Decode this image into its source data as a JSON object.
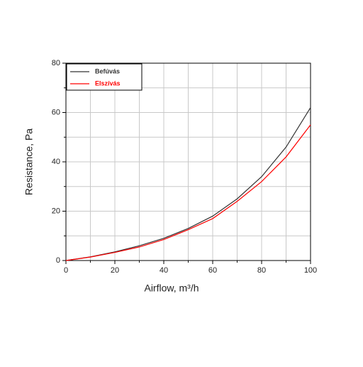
{
  "chart_data": {
    "type": "line",
    "x_label": "Airflow, m³/h",
    "y_label": "Resistance, Pa",
    "x": [
      0,
      10,
      20,
      30,
      40,
      50,
      60,
      70,
      80,
      90,
      100
    ],
    "series": [
      {
        "name": "Befúvás",
        "color": "#333333",
        "values": [
          0,
          1.5,
          3.5,
          6,
          9,
          13,
          18,
          25,
          34,
          46,
          62
        ]
      },
      {
        "name": "Elszívás",
        "color": "#ff0000",
        "values": [
          0,
          1.4,
          3.3,
          5.5,
          8.5,
          12.5,
          17,
          24,
          32,
          42,
          55
        ]
      }
    ],
    "xlim": [
      0,
      100
    ],
    "xticks": [
      0,
      20,
      40,
      60,
      80,
      100
    ],
    "xminor": [
      10,
      30,
      50,
      70,
      90
    ],
    "ylim": [
      0,
      80
    ],
    "yticks": [
      0,
      20,
      40,
      60,
      80
    ],
    "yminor": [
      10,
      30,
      50,
      70
    ],
    "grid": true,
    "legend": "top-left"
  }
}
